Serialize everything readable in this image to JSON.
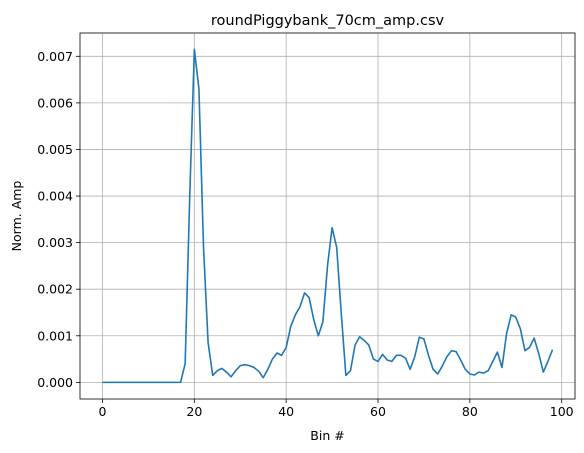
{
  "chart_data": {
    "type": "line",
    "title": "roundPiggybank_70cm_amp.csv",
    "xlabel": "Bin #",
    "ylabel": "Norm. Amp",
    "xlim": [
      -4.9,
      102.9
    ],
    "ylim": [
      -0.000357,
      0.0075
    ],
    "xticks": [
      0,
      20,
      40,
      60,
      80,
      100
    ],
    "xtick_labels": [
      "0",
      "20",
      "40",
      "60",
      "80",
      "100"
    ],
    "yticks": [
      0.0,
      0.001,
      0.002,
      0.003,
      0.004,
      0.005,
      0.006,
      0.007
    ],
    "ytick_labels": [
      "0.000",
      "0.001",
      "0.002",
      "0.003",
      "0.004",
      "0.005",
      "0.006",
      "0.007"
    ],
    "grid": true,
    "line_color": "#1f77b4",
    "series": [
      {
        "x": [
          0,
          1,
          2,
          3,
          4,
          5,
          6,
          7,
          8,
          9,
          10,
          11,
          12,
          13,
          14,
          15,
          16,
          17,
          18,
          19,
          20,
          21,
          22,
          23,
          24,
          25,
          26,
          27,
          28,
          29,
          30,
          31,
          32,
          33,
          34,
          35,
          36,
          37,
          38,
          39,
          40,
          41,
          42,
          43,
          44,
          45,
          46,
          47,
          48,
          49,
          50,
          51,
          52,
          53,
          54,
          55,
          56,
          57,
          58,
          59,
          60,
          61,
          62,
          63,
          64,
          65,
          66,
          67,
          68,
          69,
          70,
          71,
          72,
          73,
          74,
          75,
          76,
          77,
          78,
          79,
          80,
          81,
          82,
          83,
          84,
          85,
          86,
          87,
          88,
          89,
          90,
          91,
          92,
          93,
          94,
          95,
          96,
          97,
          98
        ],
        "values": [
          0,
          0,
          0,
          0,
          0,
          0,
          0,
          0,
          0,
          0,
          0,
          0,
          0,
          0,
          0,
          0,
          0,
          0,
          0.0004,
          0.004,
          0.00715,
          0.0063,
          0.0029,
          0.00085,
          0.00015,
          0.00025,
          0.0003,
          0.00022,
          0.00012,
          0.00025,
          0.00036,
          0.00038,
          0.00036,
          0.00032,
          0.00024,
          0.0001,
          0.00028,
          0.0005,
          0.00063,
          0.00058,
          0.00075,
          0.0012,
          0.00145,
          0.00162,
          0.00192,
          0.00182,
          0.00135,
          0.001,
          0.0013,
          0.0025,
          0.00332,
          0.0029,
          0.00148,
          0.00015,
          0.00025,
          0.0008,
          0.00098,
          0.0009,
          0.0008,
          0.0005,
          0.00045,
          0.0006,
          0.00048,
          0.00045,
          0.00058,
          0.00058,
          0.00052,
          0.00028,
          0.00055,
          0.00097,
          0.00093,
          0.00058,
          0.00028,
          0.00018,
          0.00035,
          0.00055,
          0.00068,
          0.00066,
          0.00048,
          0.00028,
          0.00018,
          0.00016,
          0.00022,
          0.0002,
          0.00025,
          0.00045,
          0.00065,
          0.00032,
          0.00105,
          0.00145,
          0.0014,
          0.00115,
          0.00068,
          0.00075,
          0.00095,
          0.00062,
          0.00022,
          0.00045,
          0.0007
        ]
      }
    ]
  }
}
